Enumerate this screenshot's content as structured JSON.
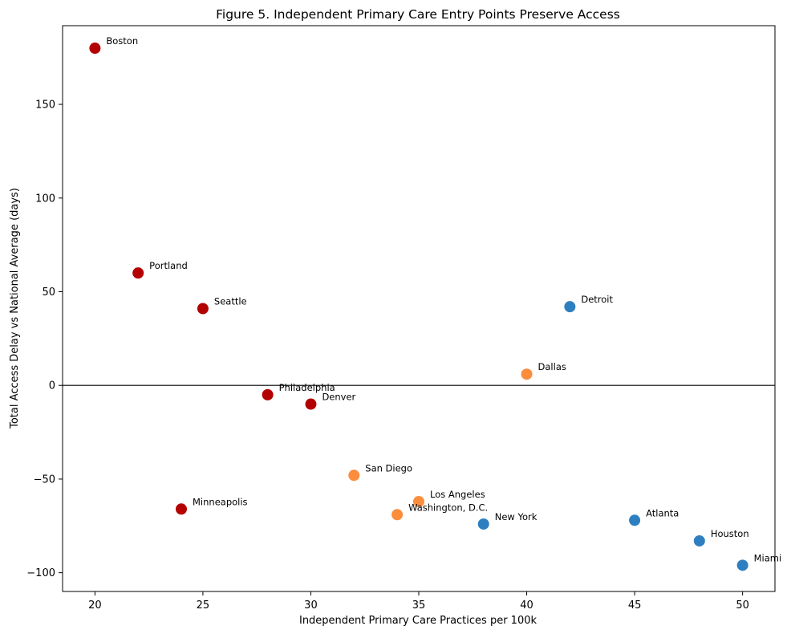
{
  "chart_data": {
    "type": "scatter",
    "title": "Figure 5. Independent Primary Care Entry Points Preserve Access",
    "xlabel": "Independent Primary Care Practices per 100k",
    "ylabel": "Total Access Delay vs National Average (days)",
    "xlim": [
      18.5,
      51.5
    ],
    "ylim": [
      -110,
      192
    ],
    "xticks": [
      20,
      25,
      30,
      35,
      40,
      45,
      50
    ],
    "yticks": [
      -100,
      -50,
      0,
      50,
      100,
      150
    ],
    "xtick_labels": [
      "20",
      "25",
      "30",
      "35",
      "40",
      "45",
      "50"
    ],
    "ytick_labels": [
      "−100",
      "−50",
      "0",
      "50",
      "100",
      "150"
    ],
    "reference_line_y": 0,
    "grid": false,
    "colors": {
      "red": "#b30000",
      "orange": "#fb8d3d",
      "blue": "#2e7fc0",
      "reference_line": "#000000"
    },
    "points": [
      {
        "label": "Boston",
        "x": 20,
        "y": 180,
        "group": "red"
      },
      {
        "label": "Portland",
        "x": 22,
        "y": 60,
        "group": "red"
      },
      {
        "label": "Seattle",
        "x": 25,
        "y": 41,
        "group": "red"
      },
      {
        "label": "Philadelphia",
        "x": 28,
        "y": -5,
        "group": "red"
      },
      {
        "label": "Denver",
        "x": 30,
        "y": -10,
        "group": "red"
      },
      {
        "label": "Minneapolis",
        "x": 24,
        "y": -66,
        "group": "red"
      },
      {
        "label": "San Diego",
        "x": 32,
        "y": -48,
        "group": "orange"
      },
      {
        "label": "Los Angeles",
        "x": 35,
        "y": -62,
        "group": "orange"
      },
      {
        "label": "Washington, D.C.",
        "x": 34,
        "y": -69,
        "group": "orange"
      },
      {
        "label": "Dallas",
        "x": 40,
        "y": 6,
        "group": "orange"
      },
      {
        "label": "New York",
        "x": 38,
        "y": -74,
        "group": "blue"
      },
      {
        "label": "Detroit",
        "x": 42,
        "y": 42,
        "group": "blue"
      },
      {
        "label": "Atlanta",
        "x": 45,
        "y": -72,
        "group": "blue"
      },
      {
        "label": "Houston",
        "x": 48,
        "y": -83,
        "group": "blue"
      },
      {
        "label": "Miami",
        "x": 50,
        "y": -96,
        "group": "blue"
      }
    ]
  }
}
